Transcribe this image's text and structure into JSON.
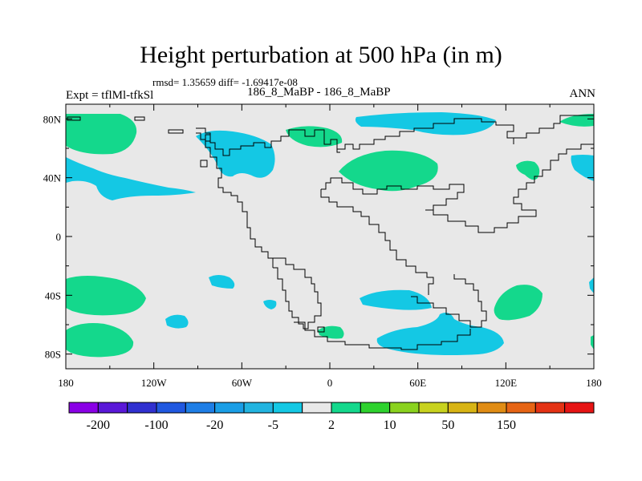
{
  "title": "Height perturbation at 500 hPa (in m)",
  "stats": "rmsd= 1.35659 diff= -1.69417e-08",
  "left_label": "Expt = tflMl-tfkSl",
  "center_label": "186_8_MaBP - 186_8_MaBP",
  "right_label": "ANN",
  "axes": {
    "x_ticks": [
      "180",
      "120W",
      "60W",
      "0",
      "60E",
      "120E",
      "180"
    ],
    "y_ticks": [
      "80N",
      "40N",
      "0",
      "40S",
      "80S"
    ]
  },
  "colorbar": {
    "colors": [
      "#8a00e6",
      "#5a18d8",
      "#3030d0",
      "#2058e0",
      "#1e7ee6",
      "#1a9ee6",
      "#22b4e0",
      "#14c8e4",
      "#e8e8e8",
      "#14d88c",
      "#2ed22e",
      "#8ad21e",
      "#c8d21e",
      "#d8b414",
      "#e08c14",
      "#e66414",
      "#e43214",
      "#e61414"
    ],
    "labels": [
      "-200",
      "-100",
      "-20",
      "-5",
      "2",
      "10",
      "50",
      "150"
    ]
  },
  "colors": {
    "background": "#e8e8e8",
    "positive_fill": "#14d88c",
    "negative_fill": "#14c8e4"
  }
}
